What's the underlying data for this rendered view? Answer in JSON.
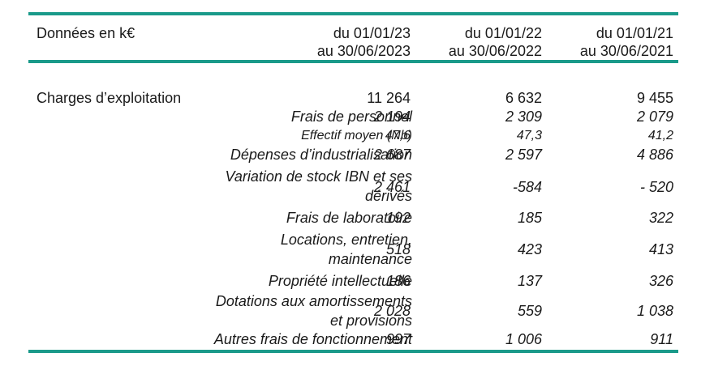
{
  "header": {
    "label": "Données en k€",
    "columns": [
      {
        "line1": "du 01/01/23",
        "line2": "au 30/06/2023"
      },
      {
        "line1": "du 01/01/22",
        "line2": "au 30/06/2022"
      },
      {
        "line1": "du 01/01/21",
        "line2": "au 30/06/2021"
      }
    ]
  },
  "rows": [
    {
      "label": "Charges d’exploitation",
      "values": [
        "11 264",
        "6 632",
        "9 455"
      ]
    },
    {
      "label": "Frais de personnel",
      "values": [
        "2 194",
        "2 309",
        "2 079"
      ]
    },
    {
      "label": "Effectif moyen (Nb)",
      "values": [
        "47,6",
        "47,3",
        "41,2"
      ]
    },
    {
      "label": "Dépenses d’industrialisation",
      "values": [
        "2 687",
        "2 597",
        "4 886"
      ]
    },
    {
      "label1": "Variation de stock IBN et ses",
      "label2": "dérivés",
      "values": [
        "2 461",
        "-584",
        "- 520"
      ]
    },
    {
      "label": "Frais de laboratoire",
      "values": [
        "192",
        "185",
        "322"
      ]
    },
    {
      "label1": "Locations, entretien,",
      "label2": "maintenance",
      "values": [
        "518",
        "423",
        "413"
      ]
    },
    {
      "label": "Propriété intellectuelle",
      "values": [
        "186",
        "137",
        "326"
      ]
    },
    {
      "label1": "Dotations aux amortissements",
      "label2": "et provisions",
      "values": [
        "2 028",
        "559",
        "1 038"
      ]
    },
    {
      "label": "Autres frais de fonctionnement",
      "values": [
        "997",
        "1 006",
        "911"
      ]
    }
  ]
}
